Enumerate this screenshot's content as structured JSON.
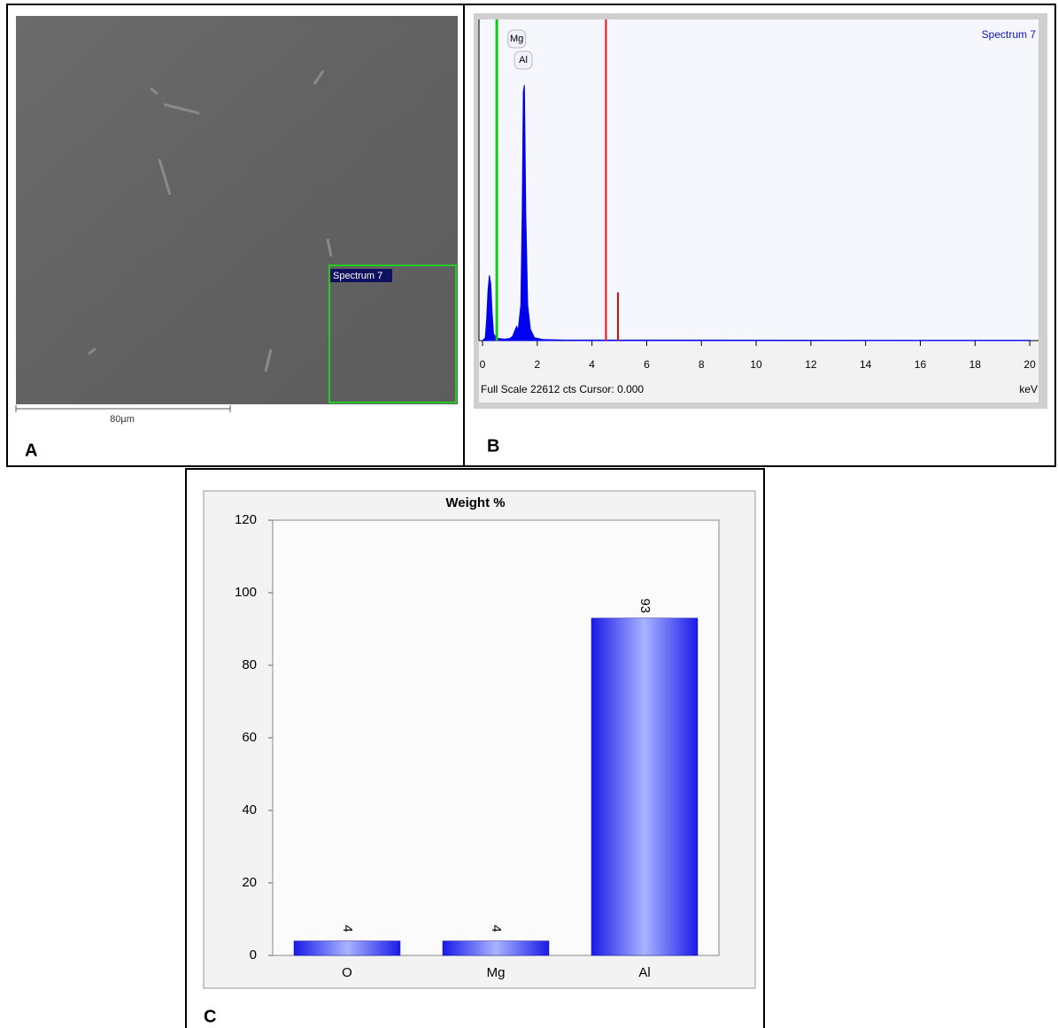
{
  "panels": {
    "a": {
      "label": "A",
      "region_label": "Spectrum 7",
      "scale_bar": "80µm"
    },
    "b": {
      "label": "B"
    },
    "c": {
      "label": "C"
    }
  },
  "chart_data": [
    {
      "type": "area",
      "title": "Spectrum 7",
      "footer": "Full Scale 22612 cts Cursor: 0.000",
      "xlabel": "keV",
      "x": [
        0,
        0.1,
        0.15,
        0.2,
        0.25,
        0.3,
        0.35,
        0.4,
        0.5,
        0.6,
        0.8,
        1.0,
        1.1,
        1.2,
        1.25,
        1.3,
        1.4,
        1.45,
        1.49,
        1.53,
        1.58,
        1.65,
        1.75,
        1.9,
        2.2,
        3,
        20
      ],
      "values": [
        0,
        200,
        1500,
        3500,
        4600,
        4000,
        2000,
        500,
        200,
        150,
        100,
        150,
        300,
        800,
        1000,
        700,
        2500,
        9000,
        17500,
        18000,
        9000,
        2500,
        800,
        200,
        80,
        40,
        20
      ],
      "color": "#0000ee",
      "markers": {
        "x": [
          0.52,
          4.51,
          4.95
        ],
        "values": [
          22612,
          22612,
          3400
        ],
        "colors": [
          "#11cc11",
          "#ee1111",
          "#cc1111"
        ]
      },
      "annotations": [
        {
          "text": "Mg",
          "x": 1.25
        },
        {
          "text": "Al",
          "x": 1.49
        }
      ],
      "xlim": [
        -0.13,
        20.32
      ],
      "ylim": [
        0,
        22612
      ],
      "xticks": [
        0,
        2,
        4,
        6,
        8,
        10,
        12,
        14,
        16,
        18,
        20
      ]
    },
    {
      "type": "bar",
      "title": "Weight %",
      "categories": [
        "O",
        "Mg",
        "Al"
      ],
      "values": [
        4,
        4,
        93
      ],
      "color": "#1a1ae6",
      "ylim": [
        0,
        120
      ],
      "yticks": [
        0,
        20,
        40,
        60,
        80,
        100,
        120
      ]
    }
  ]
}
